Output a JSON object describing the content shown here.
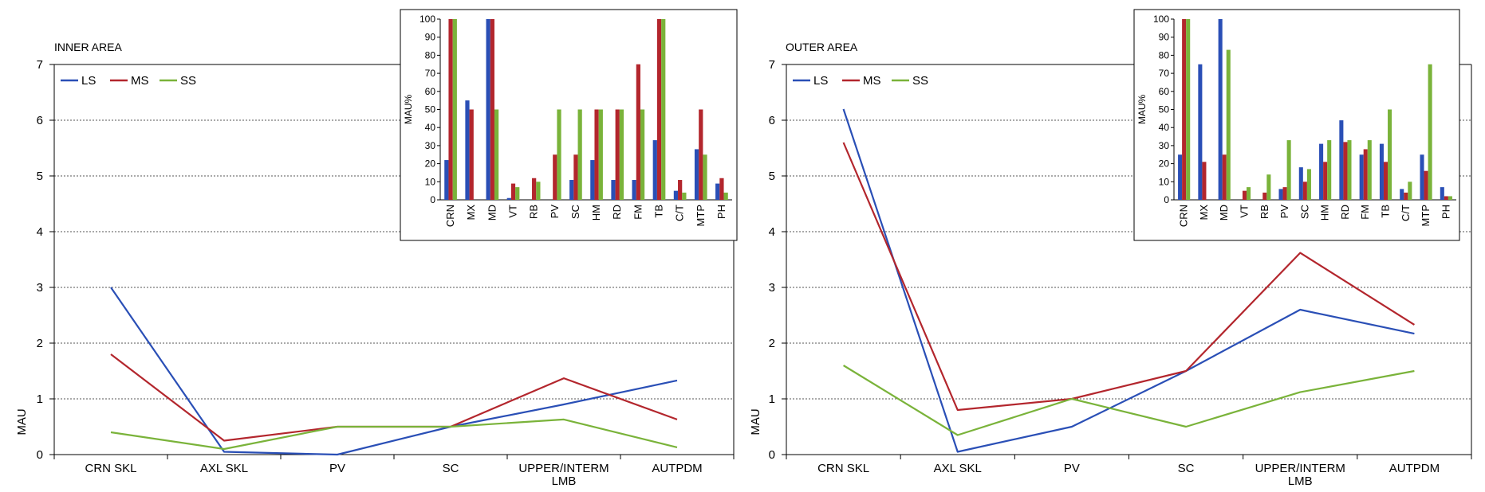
{
  "colors": {
    "LS": "#2a4fb6",
    "MS": "#b3262d",
    "SS": "#7ab33a"
  },
  "chart_data": [
    {
      "type": "line",
      "title": "INNER AREA",
      "ylabel": "MAU",
      "xlabel": "",
      "ylim": [
        0,
        7
      ],
      "yticks": [
        "0",
        "1",
        "2",
        "3",
        "4",
        "5",
        "6",
        "7"
      ],
      "categories": [
        "CRN SKL",
        "AXL SKL",
        "PV",
        "SC",
        "UPPER/INTERM",
        "AUTPDM"
      ],
      "category_sublabels": [
        "",
        "",
        "",
        "",
        "LMB",
        ""
      ],
      "legend": [
        "LS",
        "MS",
        "SS"
      ],
      "series": [
        {
          "name": "LS",
          "values": [
            3.0,
            0.05,
            0.0,
            0.5,
            0.9,
            1.33
          ]
        },
        {
          "name": "MS",
          "values": [
            1.8,
            0.25,
            0.5,
            0.5,
            1.37,
            0.63
          ]
        },
        {
          "name": "SS",
          "values": [
            0.4,
            0.1,
            0.5,
            0.5,
            0.63,
            0.13
          ]
        }
      ]
    },
    {
      "type": "bar",
      "title": "",
      "ylabel": "MAU%",
      "ylim": [
        0,
        100
      ],
      "yticks": [
        "0",
        "10",
        "20",
        "30",
        "40",
        "50",
        "60",
        "70",
        "80",
        "90",
        "100"
      ],
      "categories": [
        "CRN",
        "MX",
        "MD",
        "VT",
        "RB",
        "PV",
        "SC",
        "HM",
        "RD",
        "FM",
        "TB",
        "C/T",
        "MTP",
        "PH"
      ],
      "series": [
        {
          "name": "LS",
          "values": [
            22,
            55,
            100,
            1,
            0,
            0,
            11,
            22,
            11,
            11,
            33,
            5,
            28,
            9
          ]
        },
        {
          "name": "MS",
          "values": [
            100,
            50,
            100,
            9,
            12,
            25,
            25,
            50,
            50,
            75,
            100,
            11,
            50,
            12
          ]
        },
        {
          "name": "SS",
          "values": [
            100,
            0,
            50,
            7,
            10,
            50,
            50,
            50,
            50,
            50,
            100,
            4,
            25,
            4
          ]
        }
      ]
    },
    {
      "type": "line",
      "title": "OUTER AREA",
      "ylabel": "MAU",
      "xlabel": "",
      "ylim": [
        0,
        7
      ],
      "yticks": [
        "0",
        "1",
        "2",
        "3",
        "4",
        "5",
        "6",
        "7"
      ],
      "categories": [
        "CRN SKL",
        "AXL SKL",
        "PV",
        "SC",
        "UPPER/INTERM",
        "AUTPDM"
      ],
      "category_sublabels": [
        "",
        "",
        "",
        "",
        "LMB",
        ""
      ],
      "legend": [
        "LS",
        "MS",
        "SS"
      ],
      "series": [
        {
          "name": "LS",
          "values": [
            6.2,
            0.05,
            0.5,
            1.5,
            2.6,
            2.17
          ]
        },
        {
          "name": "MS",
          "values": [
            5.6,
            0.8,
            1.0,
            1.5,
            3.62,
            2.33
          ]
        },
        {
          "name": "SS",
          "values": [
            1.6,
            0.35,
            1.0,
            0.5,
            1.12,
            1.5
          ]
        }
      ]
    },
    {
      "type": "bar",
      "title": "",
      "ylabel": "MAU%",
      "ylim": [
        0,
        100
      ],
      "yticks": [
        "0",
        "10",
        "20",
        "30",
        "40",
        "50",
        "60",
        "70",
        "80",
        "90",
        "100"
      ],
      "categories": [
        "CRN",
        "MX",
        "MD",
        "VT",
        "RB",
        "PV",
        "SC",
        "HM",
        "RD",
        "FM",
        "TB",
        "C/T",
        "MTP",
        "PH"
      ],
      "series": [
        {
          "name": "LS",
          "values": [
            25,
            75,
            100,
            0,
            0,
            6,
            18,
            31,
            44,
            25,
            31,
            6,
            25,
            7
          ]
        },
        {
          "name": "MS",
          "values": [
            100,
            21,
            25,
            5,
            4,
            7,
            10,
            21,
            32,
            28,
            21,
            4,
            16,
            2
          ]
        },
        {
          "name": "SS",
          "values": [
            100,
            0,
            83,
            7,
            14,
            33,
            17,
            33,
            33,
            33,
            50,
            10,
            75,
            2
          ]
        }
      ]
    }
  ]
}
